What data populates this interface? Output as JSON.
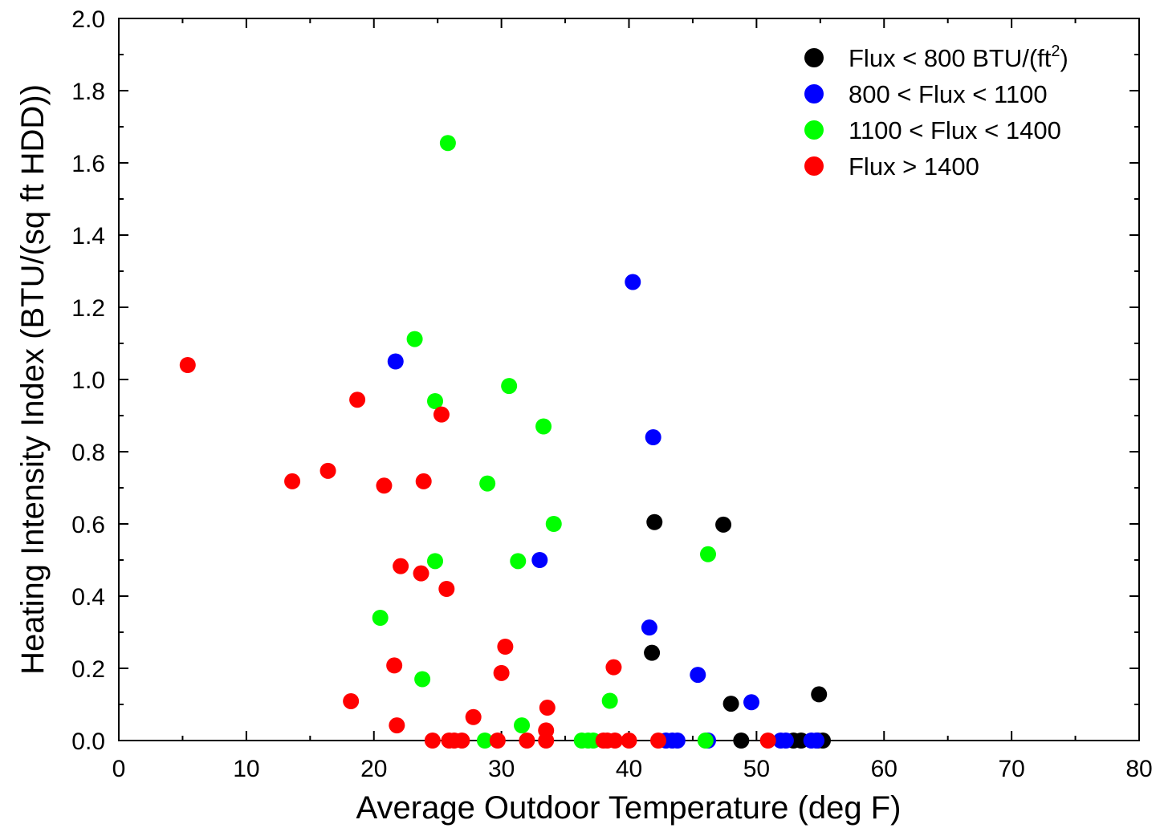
{
  "chart_data": {
    "type": "scatter",
    "title": "",
    "xlabel": "Average Outdoor Temperature (deg F)",
    "ylabel": "Heating Intensity Index (BTU/(sq ft HDD))",
    "xlim": [
      0,
      80
    ],
    "ylim": [
      0,
      2.0
    ],
    "xticks": [
      "0",
      "10",
      "20",
      "30",
      "40",
      "50",
      "60",
      "70",
      "80"
    ],
    "yticks": [
      "0.0",
      "0.2",
      "0.4",
      "0.6",
      "0.8",
      "1.0",
      "1.2",
      "1.4",
      "1.6",
      "1.8",
      "2.0"
    ],
    "grid": false,
    "legend_position": "top-right",
    "legend": [
      {
        "label": "Flux < 800 BTU/(ft",
        "sup": "2",
        "tail": ")",
        "color": "#000000"
      },
      {
        "label": "800 < Flux < 1100",
        "color": "#0000ff"
      },
      {
        "label": "1100 < Flux < 1400",
        "color": "#00ff00"
      },
      {
        "label": "Flux > 1400",
        "color": "#ff0000"
      }
    ],
    "series": [
      {
        "color": "#000000",
        "points": [
          [
            42.0,
            0.605
          ],
          [
            47.4,
            0.598
          ],
          [
            41.8,
            0.243
          ],
          [
            48.0,
            0.102
          ],
          [
            54.9,
            0.128
          ],
          [
            48.8,
            0.0
          ],
          [
            52.9,
            0.0
          ],
          [
            53.5,
            0.0
          ],
          [
            54.8,
            0.0
          ],
          [
            55.2,
            0.0
          ]
        ]
      },
      {
        "color": "#0000ff",
        "points": [
          [
            40.3,
            1.27
          ],
          [
            21.7,
            1.05
          ],
          [
            41.9,
            0.84
          ],
          [
            33.0,
            0.5
          ],
          [
            41.6,
            0.313
          ],
          [
            45.4,
            0.182
          ],
          [
            49.6,
            0.106
          ],
          [
            42.9,
            0.0
          ],
          [
            43.4,
            0.0
          ],
          [
            43.8,
            0.0
          ],
          [
            46.2,
            0.0
          ],
          [
            51.9,
            0.0
          ],
          [
            52.3,
            0.0
          ],
          [
            54.3,
            0.0
          ],
          [
            54.7,
            0.0
          ]
        ]
      },
      {
        "color": "#00ff00",
        "points": [
          [
            25.8,
            1.655
          ],
          [
            23.2,
            1.112
          ],
          [
            24.8,
            0.94
          ],
          [
            30.6,
            0.982
          ],
          [
            33.3,
            0.87
          ],
          [
            28.9,
            0.712
          ],
          [
            34.1,
            0.6
          ],
          [
            24.8,
            0.497
          ],
          [
            31.3,
            0.497
          ],
          [
            46.2,
            0.516
          ],
          [
            20.5,
            0.34
          ],
          [
            23.8,
            0.17
          ],
          [
            38.5,
            0.11
          ],
          [
            31.6,
            0.042
          ],
          [
            28.7,
            0.0
          ],
          [
            36.3,
            0.0
          ],
          [
            36.8,
            0.0
          ],
          [
            37.2,
            0.0
          ],
          [
            46.0,
            0.0
          ]
        ]
      },
      {
        "color": "#ff0000",
        "points": [
          [
            5.4,
            1.04
          ],
          [
            18.7,
            0.944
          ],
          [
            25.3,
            0.903
          ],
          [
            13.6,
            0.718
          ],
          [
            16.4,
            0.747
          ],
          [
            20.8,
            0.706
          ],
          [
            23.9,
            0.718
          ],
          [
            22.1,
            0.483
          ],
          [
            23.7,
            0.463
          ],
          [
            25.7,
            0.42
          ],
          [
            30.3,
            0.26
          ],
          [
            21.6,
            0.208
          ],
          [
            30.0,
            0.187
          ],
          [
            38.8,
            0.203
          ],
          [
            18.2,
            0.109
          ],
          [
            27.8,
            0.065
          ],
          [
            33.6,
            0.091
          ],
          [
            21.8,
            0.042
          ],
          [
            33.5,
            0.028
          ],
          [
            24.6,
            0.0
          ],
          [
            25.9,
            0.0
          ],
          [
            26.3,
            0.0
          ],
          [
            26.9,
            0.0
          ],
          [
            29.7,
            0.0
          ],
          [
            32.0,
            0.0
          ],
          [
            33.5,
            0.0
          ],
          [
            38.0,
            0.0
          ],
          [
            38.3,
            0.0
          ],
          [
            38.9,
            0.0
          ],
          [
            40.0,
            0.0
          ],
          [
            42.3,
            0.0
          ],
          [
            50.9,
            0.0
          ]
        ]
      }
    ]
  }
}
